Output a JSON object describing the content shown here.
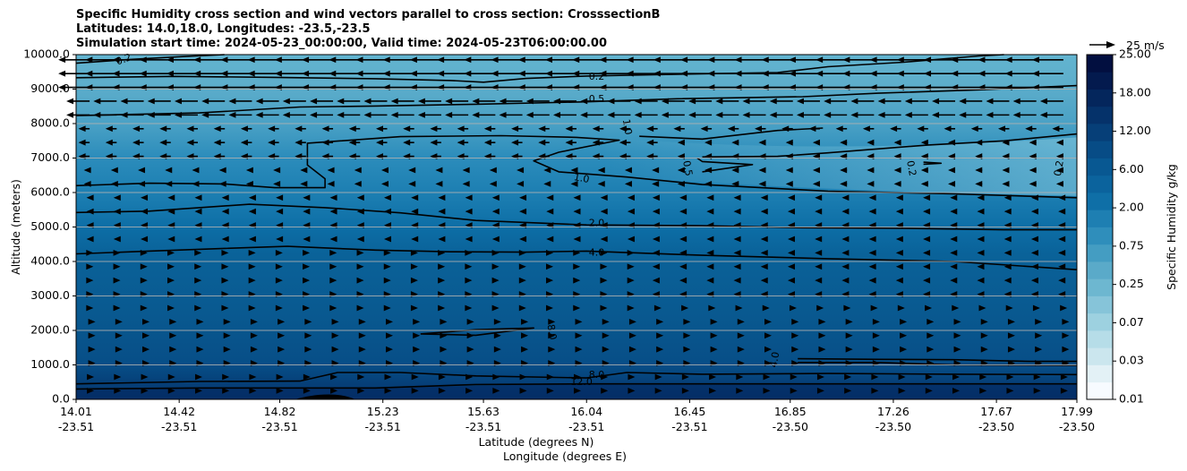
{
  "chart_data": {
    "type": "contourf",
    "title_lines": [
      "Specific Humidity cross section and wind vectors parallel to cross section: CrosssectionB",
      "Latitudes: 14.0,18.0, Longitudes: -23.5,-23.5",
      "Simulation start time: 2024-05-23_00:00:00, Valid time: 2024-05-23T06:00:00.00"
    ],
    "ylabel": "Altitude (meters)",
    "xlabel_lat": "Latitude (degrees N)",
    "xlabel_lon": "Longitude (degrees E)",
    "ylim": [
      0,
      10000
    ],
    "yticks": [
      "0.0",
      "1000.0",
      "2000.0",
      "3000.0",
      "4000.0",
      "5000.0",
      "6000.0",
      "7000.0",
      "8000.0",
      "9000.0",
      "10000.0"
    ],
    "xticks": [
      {
        "lat": "14.01",
        "lon": "-23.51"
      },
      {
        "lat": "14.42",
        "lon": "-23.51"
      },
      {
        "lat": "14.82",
        "lon": "-23.51"
      },
      {
        "lat": "15.23",
        "lon": "-23.51"
      },
      {
        "lat": "15.63",
        "lon": "-23.51"
      },
      {
        "lat": "16.04",
        "lon": "-23.51"
      },
      {
        "lat": "16.45",
        "lon": "-23.51"
      },
      {
        "lat": "16.85",
        "lon": "-23.50"
      },
      {
        "lat": "17.26",
        "lon": "-23.50"
      },
      {
        "lat": "17.67",
        "lon": "-23.50"
      },
      {
        "lat": "17.99",
        "lon": "-23.50"
      }
    ],
    "grid": "horizontal",
    "colorbar": {
      "label": "Specific Humidity g/kg",
      "tick_labels": [
        "0.01",
        "0.03",
        "0.07",
        "0.25",
        "0.75",
        "2.00",
        "6.00",
        "12.00",
        "18.00",
        "25.00"
      ],
      "colors": [
        "#f7fbff",
        "#e3f1f6",
        "#cbe6ee",
        "#b6dde8",
        "#9dd1e0",
        "#86c4d9",
        "#6db7d0",
        "#5aaac9",
        "#449dc2",
        "#2f8ebb",
        "#1e7fb2",
        "#0f6fa7",
        "#0b639d",
        "#085892",
        "#074c86",
        "#063f78",
        "#05326a",
        "#04265c",
        "#031a4e",
        "#020f40"
      ]
    },
    "quiver_key": "25 m/s",
    "contour_levels": [
      "0.2",
      "0.5",
      "1.0",
      "2.0",
      "4.0",
      "8.0",
      "12.0"
    ],
    "contour_labels": [
      {
        "text": "0.2",
        "lat": 14.2,
        "alt": 9850,
        "rot": -20
      },
      {
        "text": "0.2",
        "lat": 16.08,
        "alt": 9350,
        "rot": 0
      },
      {
        "text": "0.5",
        "lat": 16.08,
        "alt": 8700,
        "rot": 0
      },
      {
        "text": "1.0",
        "lat": 16.2,
        "alt": 7900,
        "rot": 80
      },
      {
        "text": "1.0",
        "lat": 16.02,
        "alt": 6400,
        "rot": 10
      },
      {
        "text": "0.5",
        "lat": 16.44,
        "alt": 6700,
        "rot": 80
      },
      {
        "text": "0.2",
        "lat": 17.33,
        "alt": 6700,
        "rot": 80
      },
      {
        "text": "0.2",
        "lat": 17.92,
        "alt": 6700,
        "rot": -80
      },
      {
        "text": "2.0",
        "lat": 16.08,
        "alt": 5100,
        "rot": 0
      },
      {
        "text": "4.0",
        "lat": 16.08,
        "alt": 4250,
        "rot": 0
      },
      {
        "text": "8.0",
        "lat": 15.9,
        "alt": 1950,
        "rot": 80
      },
      {
        "text": "4.0",
        "lat": 16.79,
        "alt": 1150,
        "rot": -80
      },
      {
        "text": "8.0",
        "lat": 16.08,
        "alt": 700,
        "rot": 0
      },
      {
        "text": "12.0",
        "lat": 16.02,
        "alt": 500,
        "rot": 0
      }
    ],
    "contours": [
      {
        "level": "0.2",
        "points": [
          [
            14.01,
            9750
          ],
          [
            14.2,
            9850
          ],
          [
            14.45,
            9950
          ],
          [
            14.6,
            10000
          ]
        ]
      },
      {
        "level": "0.2",
        "points": [
          [
            14.01,
            9330
          ],
          [
            14.4,
            9370
          ],
          [
            14.8,
            9340
          ],
          [
            15.2,
            9300
          ],
          [
            15.5,
            9250
          ],
          [
            15.63,
            9200
          ],
          [
            15.8,
            9310
          ],
          [
            16.04,
            9380
          ],
          [
            16.4,
            9430
          ],
          [
            16.8,
            9480
          ],
          [
            17.0,
            9650
          ],
          [
            17.3,
            9780
          ],
          [
            17.6,
            9960
          ],
          [
            17.7,
            10000
          ]
        ]
      },
      {
        "level": "0.5",
        "points": [
          [
            14.01,
            8230
          ],
          [
            14.5,
            8310
          ],
          [
            14.9,
            8480
          ],
          [
            15.2,
            8510
          ],
          [
            15.6,
            8560
          ],
          [
            16.04,
            8630
          ],
          [
            16.4,
            8720
          ],
          [
            16.9,
            8780
          ],
          [
            17.2,
            8880
          ],
          [
            17.6,
            8980
          ],
          [
            17.99,
            9100
          ]
        ]
      },
      {
        "level": "1.0",
        "points": [
          [
            14.01,
            6200
          ],
          [
            14.3,
            6270
          ],
          [
            14.6,
            6250
          ],
          [
            14.8,
            6140
          ],
          [
            15.0,
            6140
          ],
          [
            15.0,
            6400
          ],
          [
            14.93,
            6800
          ],
          [
            14.93,
            7430
          ],
          [
            15.3,
            7620
          ],
          [
            15.7,
            7650
          ],
          [
            16.0,
            7600
          ],
          [
            16.17,
            7520
          ],
          [
            15.93,
            7170
          ],
          [
            15.83,
            6920
          ],
          [
            15.93,
            6600
          ],
          [
            16.2,
            6450
          ],
          [
            16.5,
            6230
          ],
          [
            17.0,
            6040
          ],
          [
            17.5,
            5960
          ],
          [
            17.99,
            5850
          ]
        ]
      },
      {
        "level": "1.0",
        "points": [
          [
            16.25,
            7630
          ],
          [
            16.5,
            7550
          ],
          [
            16.8,
            7800
          ],
          [
            16.98,
            7870
          ]
        ]
      },
      {
        "level": "0.5",
        "points": [
          [
            16.5,
            7030
          ],
          [
            16.8,
            7050
          ],
          [
            17.0,
            7150
          ],
          [
            17.4,
            7380
          ],
          [
            17.7,
            7500
          ],
          [
            17.99,
            7700
          ]
        ]
      },
      {
        "level": "0.5",
        "points": [
          [
            16.5,
            6600
          ],
          [
            16.7,
            6810
          ],
          [
            16.5,
            6900
          ],
          [
            16.48,
            7000
          ]
        ]
      },
      {
        "level": "0.2",
        "points": [
          [
            17.38,
            6820
          ],
          [
            17.45,
            6850
          ],
          [
            17.38,
            6880
          ]
        ]
      },
      {
        "level": "2.0",
        "points": [
          [
            14.01,
            5420
          ],
          [
            14.3,
            5460
          ],
          [
            14.7,
            5660
          ],
          [
            15.0,
            5560
          ],
          [
            15.3,
            5410
          ],
          [
            15.6,
            5190
          ],
          [
            16.04,
            5060
          ],
          [
            16.5,
            5040
          ],
          [
            16.9,
            4980
          ],
          [
            17.3,
            4960
          ],
          [
            17.7,
            4920
          ],
          [
            17.99,
            4920
          ]
        ]
      },
      {
        "level": "4.0",
        "points": [
          [
            14.01,
            4220
          ],
          [
            14.3,
            4300
          ],
          [
            14.6,
            4380
          ],
          [
            14.85,
            4440
          ],
          [
            15.2,
            4330
          ],
          [
            15.5,
            4280
          ],
          [
            15.8,
            4270
          ],
          [
            16.04,
            4300
          ],
          [
            16.5,
            4180
          ],
          [
            17.0,
            4080
          ],
          [
            17.5,
            4000
          ],
          [
            17.99,
            3760
          ]
        ]
      },
      {
        "level": "8.0",
        "points": [
          [
            15.38,
            1900
          ],
          [
            15.6,
            2020
          ],
          [
            15.83,
            2070
          ],
          [
            15.6,
            1860
          ],
          [
            15.38,
            1900
          ]
        ]
      },
      {
        "level": "4.0",
        "points": [
          [
            16.88,
            1180
          ],
          [
            17.2,
            1160
          ],
          [
            17.5,
            1150
          ],
          [
            17.8,
            1100
          ],
          [
            17.99,
            1100
          ]
        ]
      },
      {
        "level": "4.0",
        "points": [
          [
            16.88,
            1070
          ],
          [
            17.2,
            1070
          ],
          [
            17.5,
            1000
          ],
          [
            17.99,
            990
          ]
        ]
      },
      {
        "level": "8.0",
        "points": [
          [
            14.01,
            450
          ],
          [
            14.5,
            520
          ],
          [
            14.9,
            530
          ],
          [
            15.05,
            780
          ],
          [
            15.3,
            780
          ],
          [
            15.6,
            680
          ],
          [
            16.04,
            620
          ],
          [
            16.2,
            780
          ],
          [
            16.5,
            730
          ],
          [
            17.0,
            750
          ],
          [
            17.5,
            730
          ],
          [
            17.99,
            720
          ]
        ]
      },
      {
        "level": "12.0",
        "points": [
          [
            14.01,
            300
          ],
          [
            14.5,
            330
          ],
          [
            14.9,
            330
          ],
          [
            15.2,
            330
          ],
          [
            15.6,
            430
          ],
          [
            16.04,
            450
          ],
          [
            16.5,
            450
          ],
          [
            17.0,
            450
          ],
          [
            17.5,
            450
          ],
          [
            17.99,
            450
          ]
        ]
      }
    ]
  }
}
